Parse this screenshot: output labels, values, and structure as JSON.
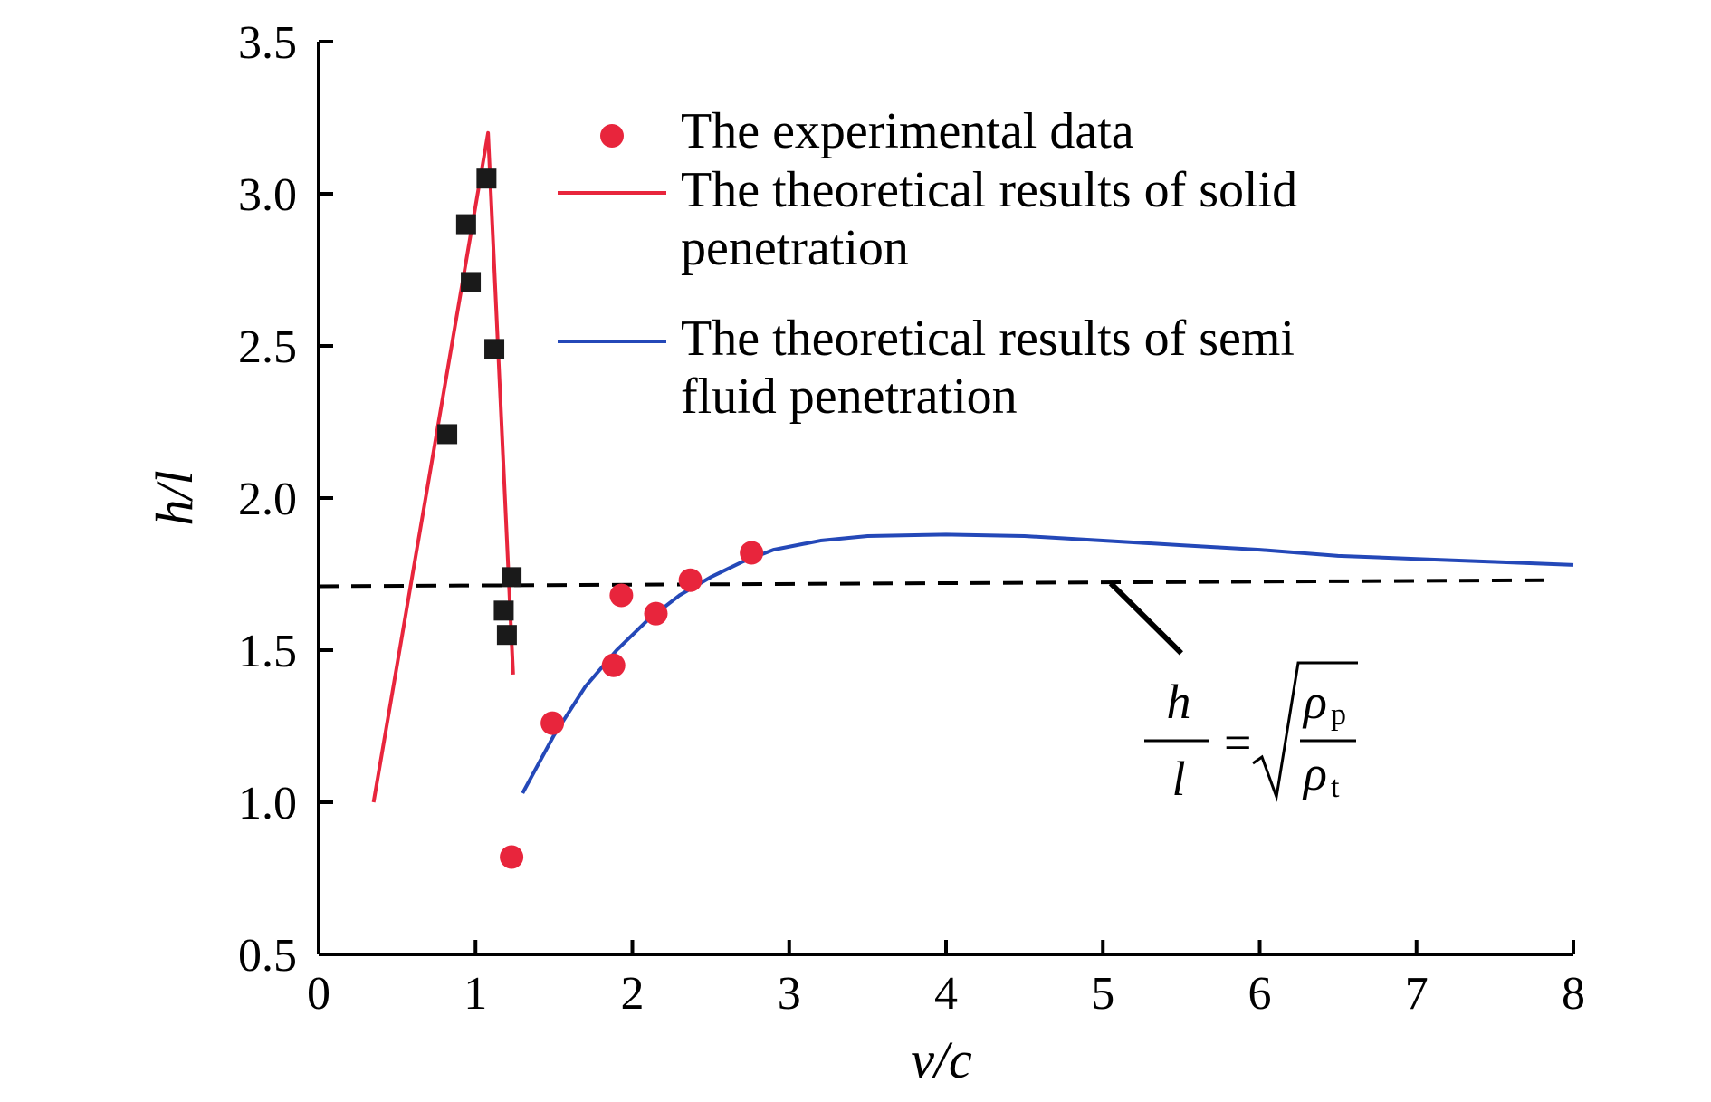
{
  "chart_data": {
    "type": "scatter",
    "xlabel": "v/c",
    "ylabel": "h/l",
    "xlim": [
      0,
      8
    ],
    "ylim": [
      0.5,
      3.5
    ],
    "xticks": [
      "0",
      "1",
      "2",
      "3",
      "4",
      "5",
      "6",
      "7",
      "8"
    ],
    "yticks": [
      "0.5",
      "1.0",
      "1.5",
      "2.0",
      "2.5",
      "3.0",
      "3.5"
    ],
    "legend_position": "top-right",
    "series": [
      {
        "name": "The experimental data",
        "kind": "points",
        "marker": "circle",
        "color": "#e8253c",
        "x": [
          1.23,
          1.49,
          1.88,
          1.93,
          2.15,
          2.37,
          2.76
        ],
        "y": [
          0.82,
          1.26,
          1.45,
          1.68,
          1.62,
          1.73,
          1.82
        ]
      },
      {
        "name": "",
        "kind": "points",
        "marker": "square",
        "color": "#1a1a1a",
        "x": [
          0.82,
          0.94,
          0.97,
          1.07,
          1.12,
          1.18,
          1.2,
          1.23
        ],
        "y": [
          2.21,
          2.9,
          2.71,
          3.05,
          2.49,
          1.63,
          1.55,
          1.74
        ]
      },
      {
        "name": "The theoretical results of solid penetration",
        "legend_lines": [
          "The theoretical results of solid",
          "penetration"
        ],
        "kind": "line",
        "color": "#e8253c",
        "x": [
          0.35,
          1.08,
          1.24
        ],
        "y": [
          1.0,
          3.2,
          1.42
        ]
      },
      {
        "name": "The theoretical results of semi fluid penetration",
        "legend_lines": [
          "The theoretical results of semi",
          "fluid penetration"
        ],
        "kind": "line",
        "color": "#2448b8",
        "x": [
          1.3,
          1.5,
          1.7,
          1.9,
          2.1,
          2.3,
          2.5,
          2.7,
          2.9,
          3.2,
          3.5,
          4.0,
          4.5,
          5.0,
          5.5,
          6.0,
          6.5,
          7.0,
          7.5,
          8.0
        ],
        "y": [
          1.03,
          1.22,
          1.38,
          1.5,
          1.6,
          1.68,
          1.74,
          1.79,
          1.83,
          1.86,
          1.875,
          1.88,
          1.875,
          1.86,
          1.845,
          1.83,
          1.81,
          1.8,
          1.79,
          1.78
        ]
      },
      {
        "name": "",
        "kind": "dashed-line",
        "color": "#000000",
        "x": [
          0,
          7.85
        ],
        "y": [
          1.71,
          1.73
        ]
      }
    ],
    "annotation": {
      "h": "h",
      "l": "l",
      "equals": "=",
      "rho": "ρ",
      "sub_top": "p",
      "sub_bottom": "t",
      "pointer_from": [
        5.5,
        1.49
      ],
      "pointer_to": [
        5.05,
        1.72
      ]
    }
  }
}
